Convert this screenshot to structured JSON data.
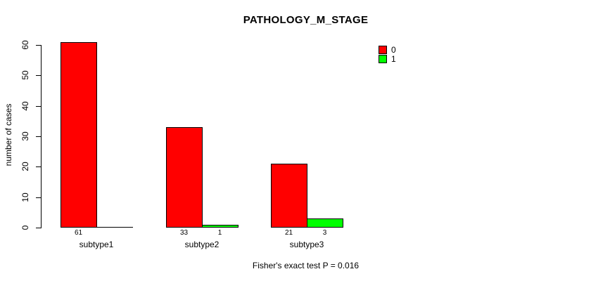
{
  "chart_data": {
    "type": "bar",
    "title": "PATHOLOGY_M_STAGE",
    "ylabel": "number of cases",
    "xlabel": "",
    "categories": [
      "subtype1",
      "subtype2",
      "subtype3"
    ],
    "series": [
      {
        "name": "0",
        "color": "#ff0000",
        "values": [
          61,
          33,
          21
        ]
      },
      {
        "name": "1",
        "color": "#00ff00",
        "values": [
          0,
          1,
          3
        ]
      }
    ],
    "bar_value_labels": [
      [
        "61",
        ""
      ],
      [
        "33",
        "1"
      ],
      [
        "21",
        "3"
      ]
    ],
    "ylim": [
      0,
      60
    ],
    "yticks": [
      0,
      10,
      20,
      30,
      40,
      50,
      60
    ],
    "grid": false,
    "legend": {
      "position": "top-right",
      "entries": [
        {
          "label": "0",
          "color": "#ff0000"
        },
        {
          "label": "1",
          "color": "#00ff00"
        }
      ]
    },
    "annotation": "Fisher's exact test P = 0.016",
    "colors": {
      "bar_border": "#000000",
      "axis": "#000000",
      "background": "#ffffff",
      "text": "#000000"
    }
  }
}
